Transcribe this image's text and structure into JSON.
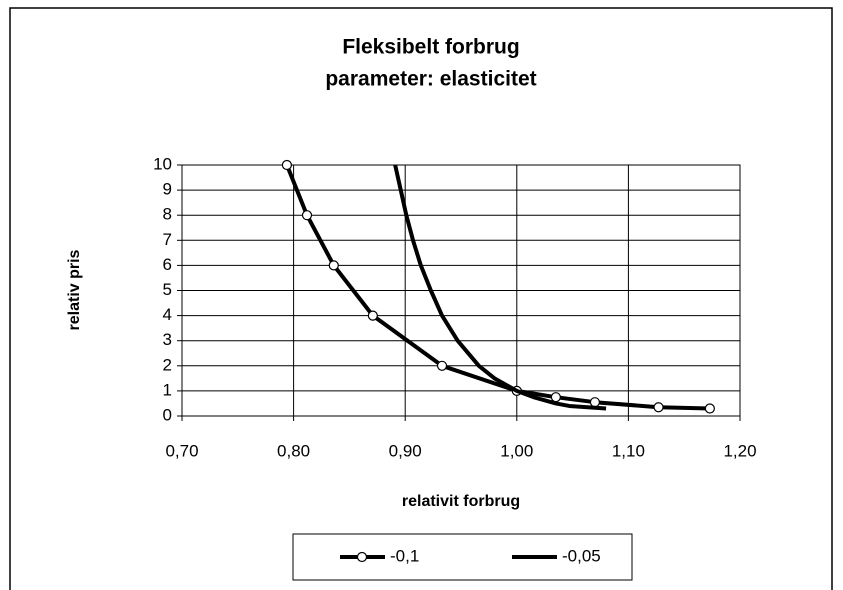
{
  "chart_data": {
    "type": "line",
    "title": [
      "Fleksibelt forbrug",
      "parameter: elasticitet"
    ],
    "xlabel": "relativit forbrug",
    "ylabel": "relativ pris",
    "xlim": [
      0.7,
      1.2
    ],
    "xticks": [
      {
        "value": 0.7,
        "label": "0,70"
      },
      {
        "value": 0.8,
        "label": "0,80"
      },
      {
        "value": 0.9,
        "label": "0,90"
      },
      {
        "value": 1.0,
        "label": "1,00"
      },
      {
        "value": 1.1,
        "label": "1,10"
      },
      {
        "value": 1.2,
        "label": "1,20"
      }
    ],
    "ylim": [
      0,
      10
    ],
    "yticks": [
      0,
      1,
      2,
      3,
      4,
      5,
      6,
      7,
      8,
      9,
      10
    ],
    "grid": true,
    "legend": "bottom",
    "series": [
      {
        "name": "-0,1",
        "color": "#000000",
        "marker": "circle",
        "x": [
          0.794,
          0.812,
          0.836,
          0.871,
          0.933,
          1.0,
          1.035,
          1.07,
          1.127,
          1.173
        ],
        "values": [
          10,
          8,
          6,
          4,
          2,
          1,
          0.75,
          0.55,
          0.35,
          0.3
        ]
      },
      {
        "name": "-0,05",
        "color": "#000000",
        "marker": "none",
        "x": [
          0.891,
          0.896,
          0.901,
          0.907,
          0.914,
          0.923,
          0.933,
          0.947,
          0.966,
          0.98,
          1.0,
          1.015,
          1.035,
          1.047,
          1.08
        ],
        "values": [
          10,
          9,
          8,
          7,
          6,
          5,
          4,
          3,
          2,
          1.5,
          1,
          0.75,
          0.5,
          0.4,
          0.3
        ]
      }
    ]
  }
}
